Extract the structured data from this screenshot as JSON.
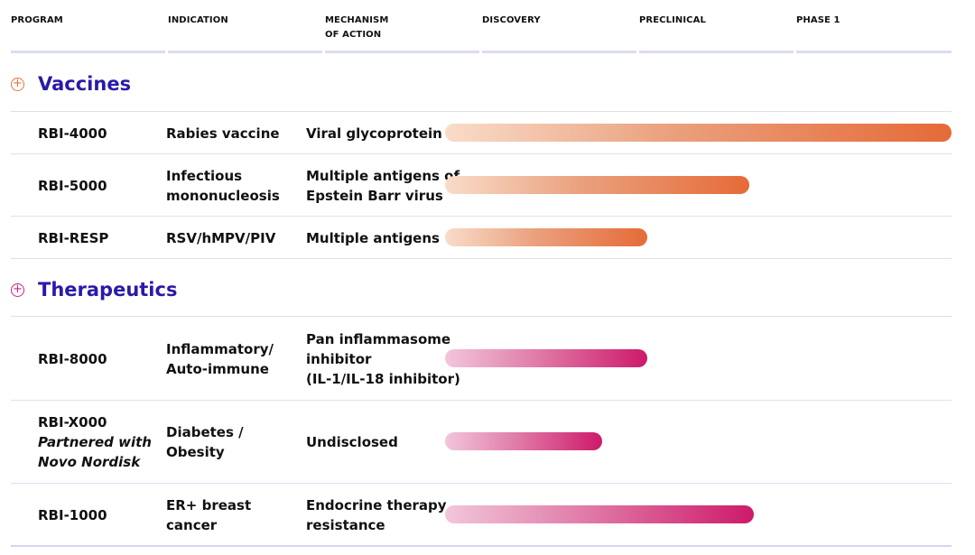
{
  "headers": [
    "PROGRAM",
    "INDICATION",
    "MECHANISM\nOF ACTION",
    "DISCOVERY",
    "PRECLINICAL",
    "PHASE 1"
  ],
  "colors": {
    "section_title": "#2a1aa8",
    "vaccines_icon": "#e8743f",
    "therapeutics_icon": "#c8247a",
    "vaccines_bar_start": "#f9dcc9",
    "vaccines_bar_end": "#e66a38",
    "therapeutics_bar_start": "#f2c6db",
    "therapeutics_bar_end": "#cd1a6a"
  },
  "sections": [
    {
      "title": "Vaccines",
      "icon": "plus-circle-icon",
      "rows": [
        {
          "program": "RBI-4000",
          "partner": "",
          "indication": "Rabies vaccine",
          "mechanism": "Viral glycoprotein",
          "progress": 1.0
        },
        {
          "program": "RBI-5000",
          "partner": "",
          "indication": "Infectious\nmononucleosis",
          "mechanism": "Multiple antigens of\nEpstein Barr virus",
          "progress": 0.6
        },
        {
          "program": "RBI-RESP",
          "partner": "",
          "indication": "RSV/hMPV/PIV",
          "mechanism": "Multiple antigens",
          "progress": 0.4
        }
      ]
    },
    {
      "title": "Therapeutics",
      "icon": "plus-circle-icon",
      "rows": [
        {
          "program": "RBI-8000",
          "partner": "",
          "indication": "Inflammatory/\nAuto-immune",
          "mechanism": "Pan inflammasome\ninhibitor\n(IL-1/IL-18 inhibitor)",
          "progress": 0.4
        },
        {
          "program": "RBI-X000",
          "partner": "Partnered with\nNovo Nordisk",
          "indication": "Diabetes /\nObesity",
          "mechanism": "Undisclosed",
          "progress": 0.31
        },
        {
          "program": "RBI-1000",
          "partner": "",
          "indication": "ER+ breast\ncancer",
          "mechanism": "Endocrine therapy\nresistance",
          "progress": 0.61
        }
      ]
    }
  ]
}
